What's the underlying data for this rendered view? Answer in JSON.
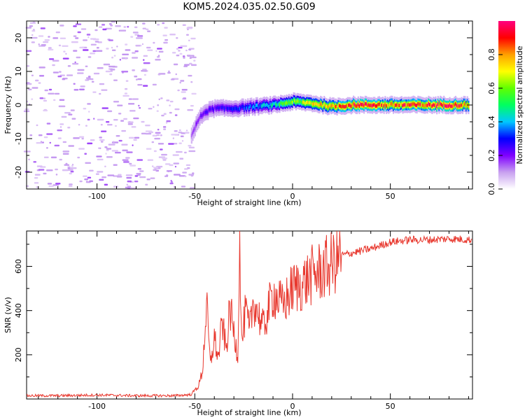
{
  "title": "KOM5.2024.035.02.50.G09",
  "chart_data": [
    {
      "type": "heatmap",
      "xlabel": "Height of straight line (km)",
      "ylabel": "Frequency (Hz)",
      "xlim": [
        -136,
        92
      ],
      "ylim": [
        -25,
        25
      ],
      "xticks": [
        -100,
        -50,
        0,
        50
      ],
      "yticks": [
        -20,
        -10,
        0,
        10,
        20
      ],
      "colorbar": {
        "label": "Normalized spectral amplitude",
        "range": [
          0,
          1
        ],
        "ticks": [
          "0.0",
          "0.2",
          "0.4",
          "0.6",
          "0.8"
        ],
        "colormap": [
          "#ffffff",
          "#c8a0f0",
          "#8000ff",
          "#0000ff",
          "#00c8ff",
          "#00ff60",
          "#60ff00",
          "#ffff00",
          "#ffa000",
          "#ff0000",
          "#ff0080"
        ]
      },
      "ridge": [
        {
          "x": -52,
          "f": -9,
          "amp": 0.15
        },
        {
          "x": -48,
          "f": -4,
          "amp": 0.2
        },
        {
          "x": -45,
          "f": -2,
          "amp": 0.22
        },
        {
          "x": -40,
          "f": -1,
          "amp": 0.25
        },
        {
          "x": -35,
          "f": -1,
          "amp": 0.28
        },
        {
          "x": -30,
          "f": -1,
          "amp": 0.3
        },
        {
          "x": -20,
          "f": -0.5,
          "amp": 0.35
        },
        {
          "x": -10,
          "f": 0,
          "amp": 0.45
        },
        {
          "x": 0,
          "f": 1,
          "amp": 0.6
        },
        {
          "x": 10,
          "f": 0.5,
          "amp": 0.7
        },
        {
          "x": 20,
          "f": -0.5,
          "amp": 0.85
        },
        {
          "x": 30,
          "f": 0,
          "amp": 0.9
        },
        {
          "x": 50,
          "f": 0,
          "amp": 0.85
        },
        {
          "x": 70,
          "f": 0,
          "amp": 0.9
        },
        {
          "x": 90,
          "f": 0,
          "amp": 0.88
        }
      ]
    },
    {
      "type": "line",
      "xlabel": "Height of straight line (km)",
      "ylabel": "SNR (v/v)",
      "xlim": [
        -136,
        92
      ],
      "ylim": [
        0,
        760
      ],
      "xticks": [
        -100,
        -50,
        0,
        50
      ],
      "yticks": [
        200,
        400,
        600
      ],
      "series": [
        {
          "color": "#e8382e",
          "x": [
            -136,
            -120,
            -100,
            -80,
            -60,
            -52,
            -48,
            -46,
            -44,
            -42,
            -40,
            -38,
            -36,
            -34,
            -32,
            -30,
            -28,
            -27,
            -26,
            -24,
            -22,
            -20,
            -15,
            -10,
            -5,
            0,
            5,
            10,
            15,
            20,
            25,
            30,
            40,
            50,
            60,
            70,
            80,
            92
          ],
          "y": [
            15,
            15,
            18,
            15,
            15,
            20,
            60,
            130,
            430,
            150,
            280,
            180,
            350,
            220,
            410,
            300,
            200,
            750,
            250,
            400,
            300,
            450,
            320,
            480,
            420,
            500,
            520,
            560,
            580,
            610,
            650,
            660,
            680,
            710,
            720,
            720,
            725,
            720
          ]
        }
      ]
    }
  ]
}
